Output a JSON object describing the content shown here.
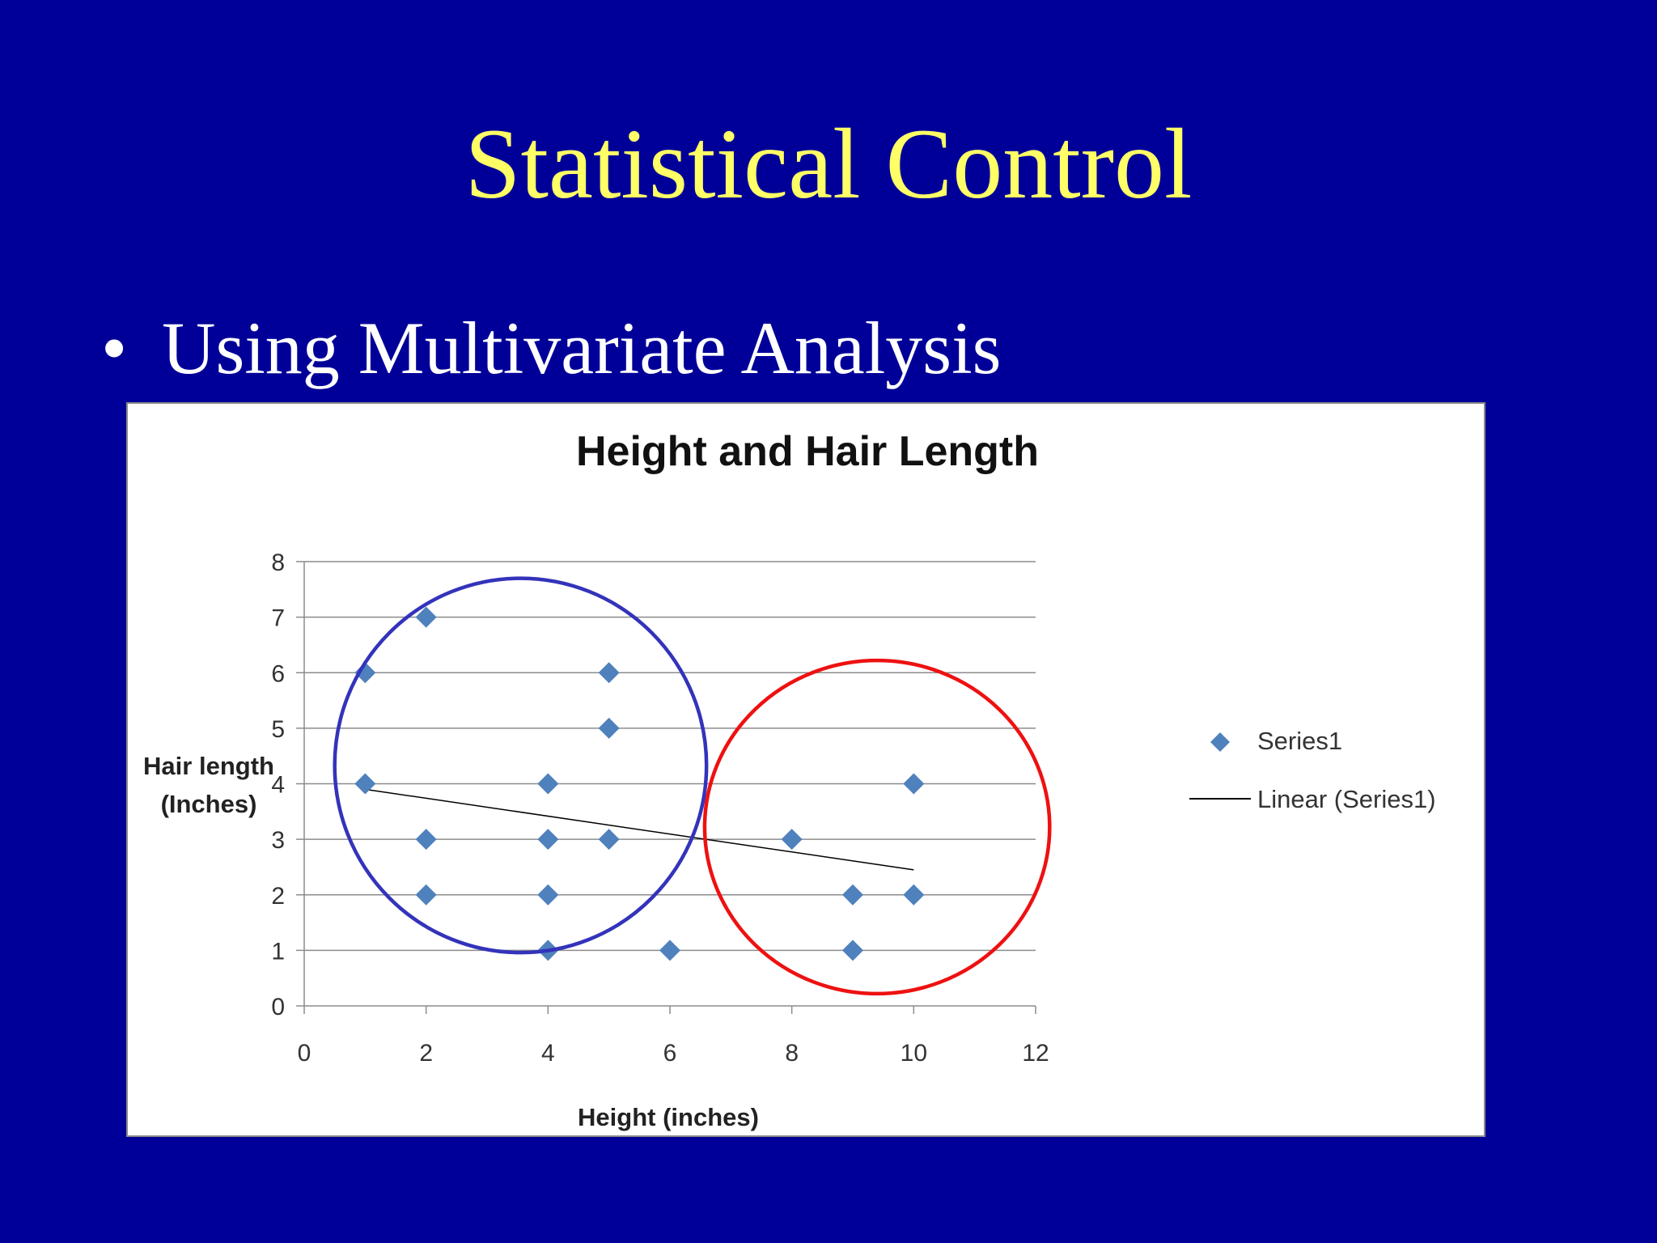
{
  "slide": {
    "title": "Statistical Control",
    "bullet_symbol": "•",
    "bullet_text": "Using Multivariate Analysis"
  },
  "chart_data": {
    "type": "scatter",
    "title": "Height and Hair Length",
    "xlabel": "Height (inches)",
    "ylabel_lines": [
      "Hair length",
      "(Inches)"
    ],
    "xlim": [
      0,
      12
    ],
    "ylim": [
      0,
      8
    ],
    "xticks": [
      0,
      2,
      4,
      6,
      8,
      10,
      12
    ],
    "yticks": [
      0,
      1,
      2,
      3,
      4,
      5,
      6,
      7,
      8
    ],
    "grid": "horizontal",
    "legend_position": "right",
    "series": [
      {
        "name": "Series1",
        "color": "#4f81bd",
        "marker": "diamond",
        "points": [
          {
            "x": 1,
            "y": 6
          },
          {
            "x": 1,
            "y": 4
          },
          {
            "x": 2,
            "y": 7
          },
          {
            "x": 2,
            "y": 3
          },
          {
            "x": 2,
            "y": 2
          },
          {
            "x": 4,
            "y": 4
          },
          {
            "x": 4,
            "y": 3
          },
          {
            "x": 4,
            "y": 2
          },
          {
            "x": 4,
            "y": 1
          },
          {
            "x": 5,
            "y": 6
          },
          {
            "x": 5,
            "y": 5
          },
          {
            "x": 5,
            "y": 3
          },
          {
            "x": 6,
            "y": 1
          },
          {
            "x": 8,
            "y": 3
          },
          {
            "x": 9,
            "y": 2
          },
          {
            "x": 9,
            "y": 1
          },
          {
            "x": 10,
            "y": 4
          },
          {
            "x": 10,
            "y": 2
          }
        ]
      }
    ],
    "trendline": {
      "name": "Linear (Series1)",
      "color": "#000000",
      "from": {
        "x": 1,
        "y": 3.9
      },
      "to": {
        "x": 10,
        "y": 2.45
      }
    },
    "annotations": [
      {
        "shape": "circle",
        "color": "#3333bb",
        "cx": 3.55,
        "cy": 4.33,
        "rx": 3.05,
        "ry": 3.37
      },
      {
        "shape": "circle",
        "color": "#ee1111",
        "cx": 9.4,
        "cy": 3.22,
        "rx": 2.83,
        "ry": 3.0
      }
    ]
  }
}
